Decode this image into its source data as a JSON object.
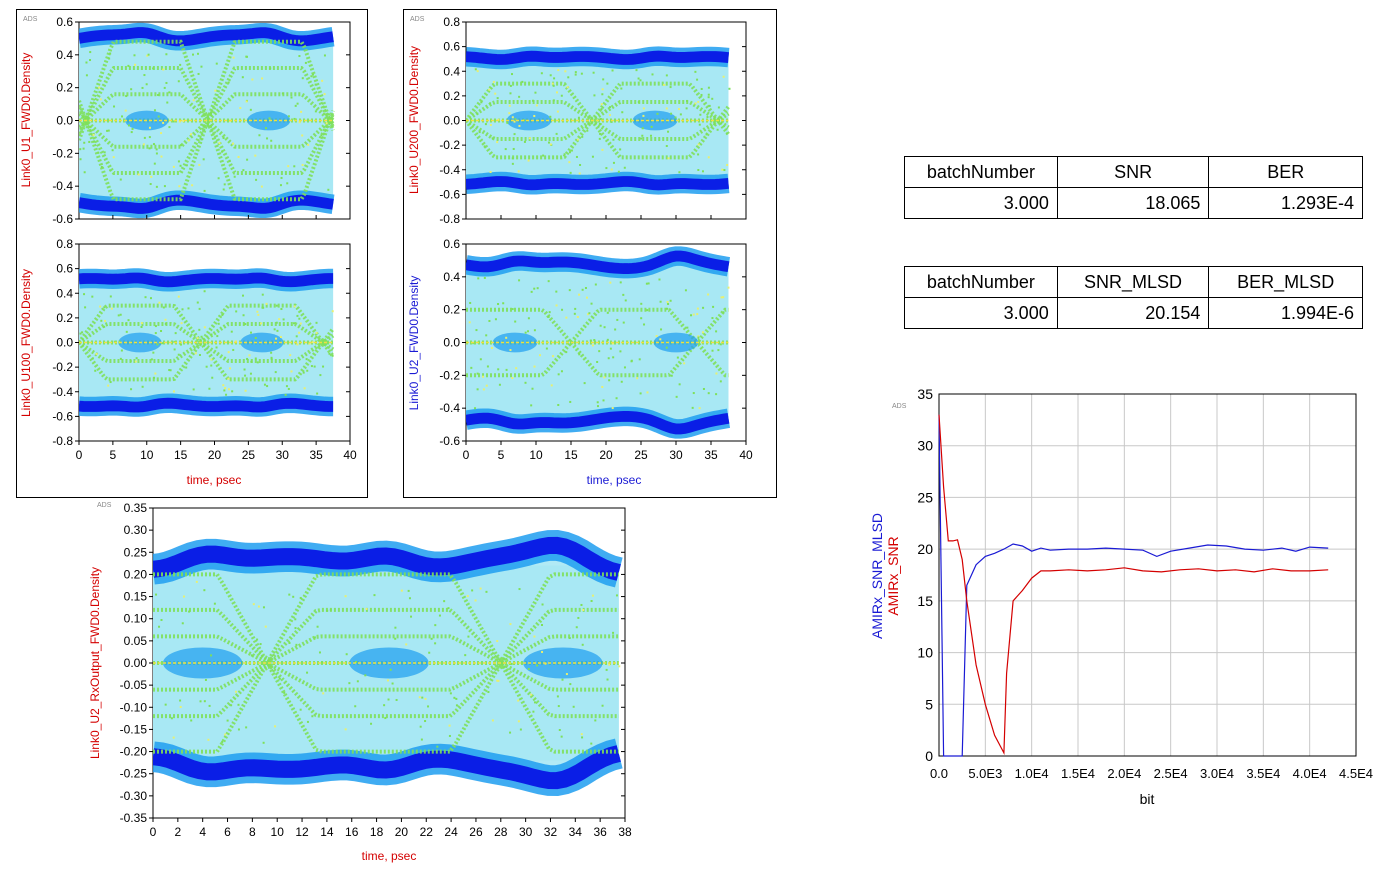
{
  "colors": {
    "red_label": "#d40000",
    "blue_label": "#1a1ad4",
    "snr_line": "#d40000",
    "snr_mlsd_line": "#1a1ad4",
    "density_outer": "#0a1ee6",
    "density_mid": "#1e9ef0",
    "density_light": "#a8e8f4",
    "density_green": "#7ee05a",
    "density_yellow": "#e8f070"
  },
  "tables": [
    {
      "headers": [
        "batchNumber",
        "SNR",
        "BER"
      ],
      "values": [
        "3.000",
        "18.065",
        "1.293E-4"
      ]
    },
    {
      "headers": [
        "batchNumber",
        "SNR_MLSD",
        "BER_MLSD"
      ],
      "values": [
        "3.000",
        "20.154",
        "1.994E-6"
      ]
    }
  ],
  "chart_data": [
    {
      "type": "heatmap",
      "ads_tag": "ADS",
      "ylabel": "Link0_U1_FWD0.Density",
      "ylabel_color": "red",
      "yticks": [
        "0.6",
        "0.4",
        "0.2",
        "0.0",
        "-0.2",
        "-0.4",
        "-0.6"
      ],
      "ylim": [
        -0.6,
        0.6
      ],
      "xlim": [
        0,
        40
      ],
      "xticks": [],
      "xlabel": "",
      "eye_amplitude": 0.5,
      "eye_openings": [
        10,
        28
      ],
      "crossings": [
        1,
        19,
        37
      ],
      "levels": [
        -0.48,
        -0.32,
        -0.16,
        0.0,
        0.16,
        0.32,
        0.48
      ]
    },
    {
      "type": "heatmap",
      "ads_tag": "",
      "ylabel": "Link0_U100_FWD0.Density",
      "ylabel_color": "red",
      "yticks": [
        "0.8",
        "0.6",
        "0.4",
        "0.2",
        "0.0",
        "-0.2",
        "-0.4",
        "-0.6",
        "-0.8"
      ],
      "ylim": [
        -0.8,
        0.8
      ],
      "xlim": [
        0,
        40
      ],
      "xticks": [
        "0",
        "5",
        "10",
        "15",
        "20",
        "25",
        "30",
        "35",
        "40"
      ],
      "xlabel": "time, psec",
      "xlabel_color": "red",
      "eye_amplitude": 0.5,
      "eye_openings": [
        9,
        27
      ],
      "crossings": [
        0,
        18,
        36
      ],
      "levels": [
        -0.3,
        -0.15,
        0.0,
        0.15,
        0.3
      ]
    },
    {
      "type": "heatmap",
      "ads_tag": "ADS",
      "ylabel": "Link0_U200_FWD0.Density",
      "ylabel_color": "red",
      "yticks": [
        "0.8",
        "0.6",
        "0.4",
        "0.2",
        "0.0",
        "-0.2",
        "-0.4",
        "-0.6",
        "-0.8"
      ],
      "ylim": [
        -0.8,
        0.8
      ],
      "xlim": [
        0,
        40
      ],
      "xticks": [],
      "xlabel": "",
      "eye_amplitude": 0.5,
      "eye_openings": [
        9,
        27
      ],
      "crossings": [
        0,
        18,
        36
      ],
      "levels": [
        -0.3,
        -0.15,
        0.0,
        0.15,
        0.3
      ]
    },
    {
      "type": "heatmap",
      "ads_tag": "",
      "ylabel": "Link0_U2_FWD0.Density",
      "ylabel_color": "blue",
      "yticks": [
        "0.6",
        "0.4",
        "0.2",
        "0.0",
        "-0.2",
        "-0.4",
        "-0.6"
      ],
      "ylim": [
        -0.6,
        0.6
      ],
      "xlim": [
        0,
        40
      ],
      "xticks": [
        "0",
        "5",
        "10",
        "15",
        "20",
        "25",
        "30",
        "35",
        "40"
      ],
      "xlabel": "time, psec",
      "xlabel_color": "blue",
      "eye_amplitude": 0.47,
      "eye_openings": [
        7,
        30
      ],
      "crossings": [
        15,
        33
      ],
      "levels": [
        -0.2,
        0.0,
        0.2
      ]
    },
    {
      "type": "heatmap",
      "ads_tag": "ADS",
      "ylabel": "Link0_U2_RxOutput_FWD0.Density",
      "ylabel_color": "red",
      "yticks": [
        "0.35",
        "0.30",
        "0.25",
        "0.20",
        "0.15",
        "0.10",
        "0.05",
        "0.00",
        "-0.05",
        "-0.10",
        "-0.15",
        "-0.20",
        "-0.25",
        "-0.30",
        "-0.35"
      ],
      "ylim": [
        -0.35,
        0.35
      ],
      "xlim": [
        0,
        38
      ],
      "xticks": [
        "0",
        "2",
        "4",
        "6",
        "8",
        "10",
        "12",
        "14",
        "16",
        "18",
        "20",
        "22",
        "24",
        "26",
        "28",
        "30",
        "32",
        "34",
        "36",
        "38"
      ],
      "xlabel": "time, psec",
      "xlabel_color": "red",
      "eye_amplitude": 0.22,
      "eye_openings": [
        4,
        19,
        33
      ],
      "crossings": [
        9.2,
        28
      ],
      "levels": [
        -0.2,
        -0.12,
        -0.06,
        0.0,
        0.06,
        0.12,
        0.2
      ]
    },
    {
      "type": "line",
      "ads_tag": "ADS",
      "xlabel": "bit",
      "ylabel_lines": [
        "AMIRx_SNR_MLSD",
        "AMIRx_SNR"
      ],
      "ylim": [
        0,
        35
      ],
      "xlim": [
        0,
        45000
      ],
      "yticks": [
        "0",
        "5",
        "10",
        "15",
        "20",
        "25",
        "30",
        "35"
      ],
      "xticks": [
        "0.0",
        "5.0E3",
        "1.0E4",
        "1.5E4",
        "2.0E4",
        "2.5E4",
        "3.0E4",
        "3.5E4",
        "4.0E4",
        "4.5E4"
      ],
      "grid": true,
      "series": [
        {
          "name": "AMIRx_SNR_MLSD",
          "x": [
            0,
            500,
            1000,
            1500,
            2000,
            2500,
            3000,
            4000,
            5000,
            6000,
            7000,
            8000,
            9000,
            10000,
            11000,
            12000,
            14000,
            16000,
            18000,
            20000,
            22000,
            23500,
            25000,
            27000,
            29000,
            31000,
            33000,
            35000,
            37000,
            38500,
            40000,
            42000
          ],
          "y": [
            33,
            0,
            0,
            0,
            0,
            0,
            16.5,
            18.5,
            19.3,
            19.6,
            20.0,
            20.5,
            20.3,
            19.8,
            20.1,
            19.9,
            20.0,
            20.0,
            20.1,
            20.0,
            19.9,
            19.3,
            19.8,
            20.1,
            20.4,
            20.3,
            20.0,
            19.9,
            20.1,
            19.8,
            20.2,
            20.1
          ]
        },
        {
          "name": "AMIRx_SNR",
          "x": [
            0,
            500,
            1000,
            1500,
            2000,
            2500,
            3000,
            4000,
            5000,
            6000,
            7000,
            7300,
            8000,
            9000,
            10000,
            11000,
            12000,
            14000,
            16000,
            18000,
            20000,
            22000,
            24000,
            26000,
            28000,
            30000,
            32000,
            34000,
            36000,
            38000,
            40000,
            42000
          ],
          "y": [
            33,
            26,
            20.8,
            20.8,
            20.9,
            19.0,
            15.0,
            8.8,
            5.0,
            2.0,
            0.3,
            8.0,
            15.0,
            16.0,
            17.2,
            17.9,
            17.9,
            18.0,
            17.9,
            18.0,
            18.2,
            17.9,
            17.8,
            18.0,
            18.1,
            17.9,
            18.0,
            17.8,
            18.1,
            17.9,
            17.9,
            18.0
          ]
        }
      ]
    }
  ]
}
